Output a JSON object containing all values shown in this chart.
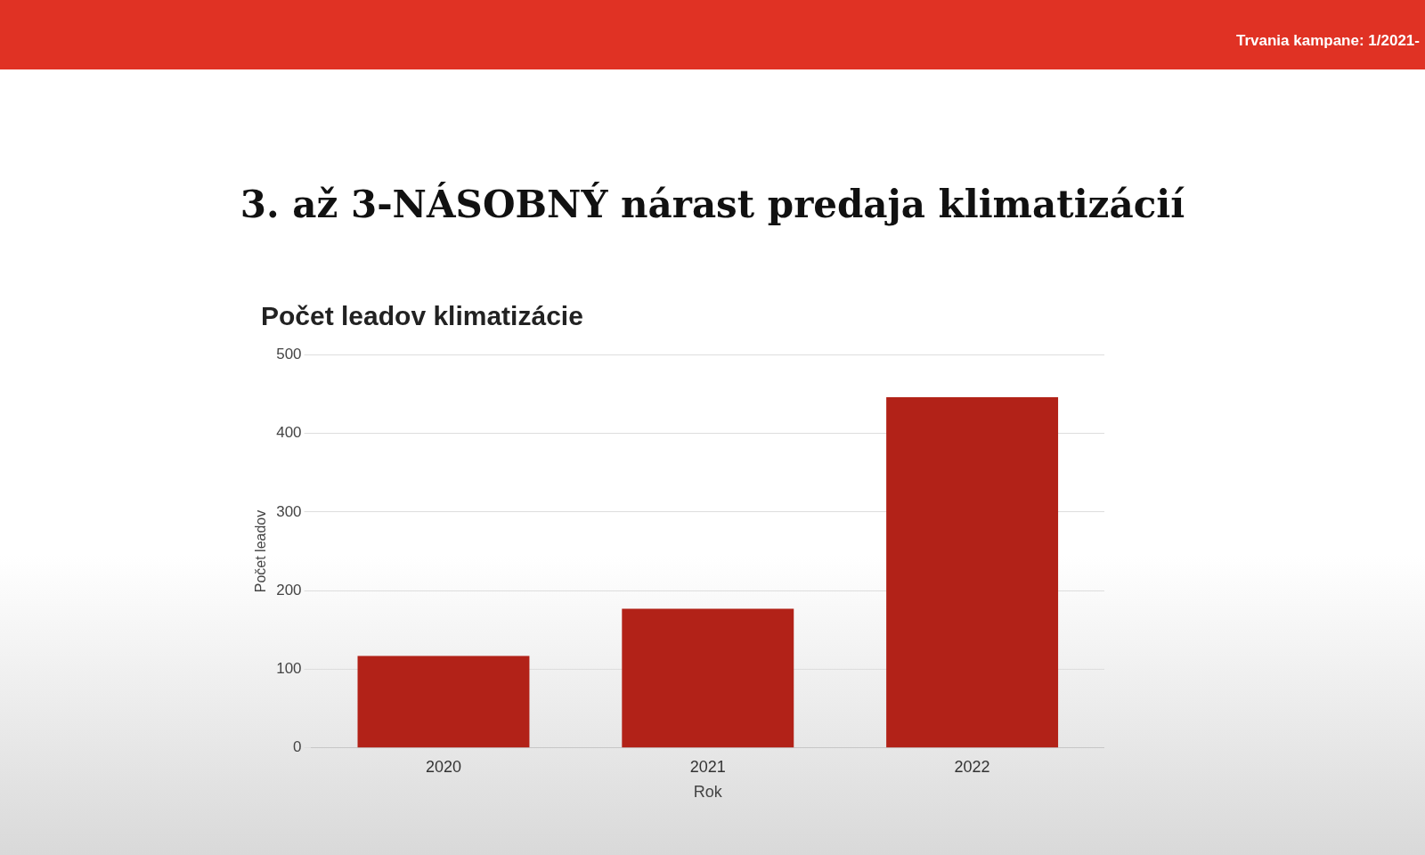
{
  "chart_data": {
    "type": "bar",
    "title": "3.   až 3-NÁSOBNÝ nárast predaja klimatizácií",
    "subtitle": "Počet leadov klimatizácie",
    "annotations": [
      "Trvania kampane: 1/2021-"
    ],
    "categories": [
      "2020",
      "2021",
      "2022"
    ],
    "values": [
      117,
      177,
      446
    ],
    "color": "#b22218",
    "xlabel": "Rok",
    "ylabel": "Počet leadov",
    "ylim": [
      0,
      500
    ],
    "yticks": [
      0,
      100,
      200,
      300,
      400,
      500
    ],
    "grid": "y",
    "legend": false
  }
}
